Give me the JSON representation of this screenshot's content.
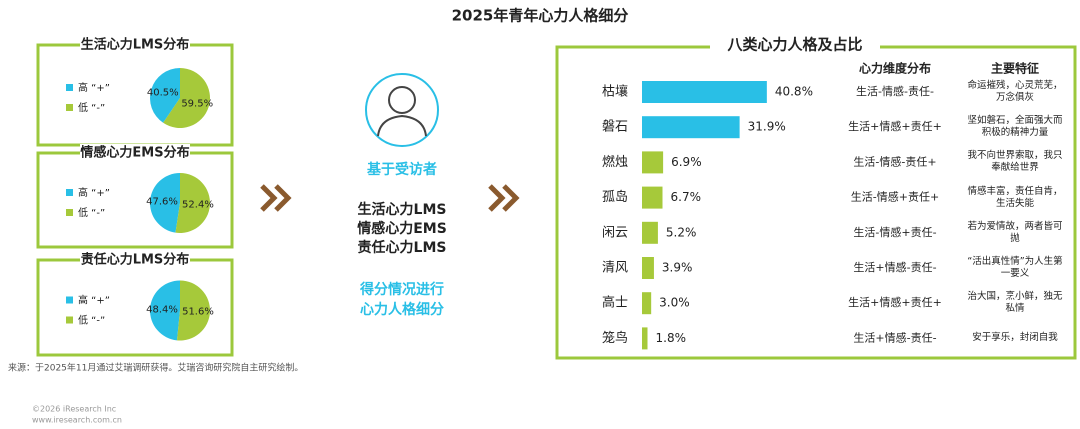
{
  "title": "2025年青年心力人格细分",
  "chart_data": [
    {
      "type": "pie",
      "title": "生活心力LMS分布",
      "categories": [
        "高 “+”",
        "低 “-”"
      ],
      "values": [
        40.5,
        59.5
      ],
      "value_labels": [
        "40.5%",
        "59.5%"
      ],
      "colors": [
        "#29bfe6",
        "#a6c93a"
      ]
    },
    {
      "type": "pie",
      "title": "情感心力EMS分布",
      "categories": [
        "高 “+”",
        "低 “-”"
      ],
      "values": [
        47.6,
        52.4
      ],
      "value_labels": [
        "47.6%",
        "52.4%"
      ],
      "colors": [
        "#29bfe6",
        "#a6c93a"
      ]
    },
    {
      "type": "pie",
      "title": "责任心力LMS分布",
      "categories": [
        "高 “+”",
        "低 “-”"
      ],
      "values": [
        48.4,
        51.6
      ],
      "value_labels": [
        "48.4%",
        "51.6%"
      ],
      "colors": [
        "#29bfe6",
        "#a6c93a"
      ]
    },
    {
      "type": "bar",
      "orientation": "horizontal",
      "title": "八类心力人格及占比",
      "categories": [
        "枯壤",
        "磐石",
        "燃烛",
        "孤岛",
        "闲云",
        "清风",
        "高士",
        "笼鸟"
      ],
      "values": [
        40.8,
        31.9,
        6.9,
        6.7,
        5.2,
        3.9,
        3.0,
        1.8
      ],
      "value_labels": [
        "40.8%",
        "31.9%",
        "6.9%",
        "6.7%",
        "5.2%",
        "3.9%",
        "3.0%",
        "1.8%"
      ],
      "colors": [
        "#29bfe6",
        "#29bfe6",
        "#a6c93a",
        "#a6c93a",
        "#a6c93a",
        "#a6c93a",
        "#a6c93a",
        "#a6c93a"
      ],
      "columns": [
        {
          "header": "心力维度分布",
          "rows": [
            "生活-情感-责任-",
            "生活+情感+责任+",
            "生活-情感-责任+",
            "生活-情感+责任+",
            "生活-情感+责任-",
            "生活+情感-责任-",
            "生活+情感+责任+",
            "生活+情感-责任-"
          ]
        },
        {
          "header": "主要特征",
          "rows": [
            "命运摧残，心灵荒芜，万念俱灰",
            "坚如磐石，全面强大而积极的精神力量",
            "我不向世界索取，我只奉献给世界",
            "情感丰富，责任自肯，生活失能",
            "若为爱情故，两者皆可抛",
            "“活出真性情”为人生第一要义",
            "治大国，烹小鲜，独无私情",
            "安于享乐，封闭自我"
          ]
        }
      ]
    }
  ],
  "center": {
    "heading": "基于受访者",
    "items": [
      "生活心力LMS",
      "情感心力EMS",
      "责任心力LMS"
    ],
    "footer": [
      "得分情况进行",
      "心力人格细分"
    ]
  },
  "source": "来源：于2025年11月通过艾瑞调研获得。艾瑞咨询研究院自主研究绘制。",
  "copyright": [
    "©2026 iResearch Inc",
    "www.iresearch.com.cn"
  ]
}
